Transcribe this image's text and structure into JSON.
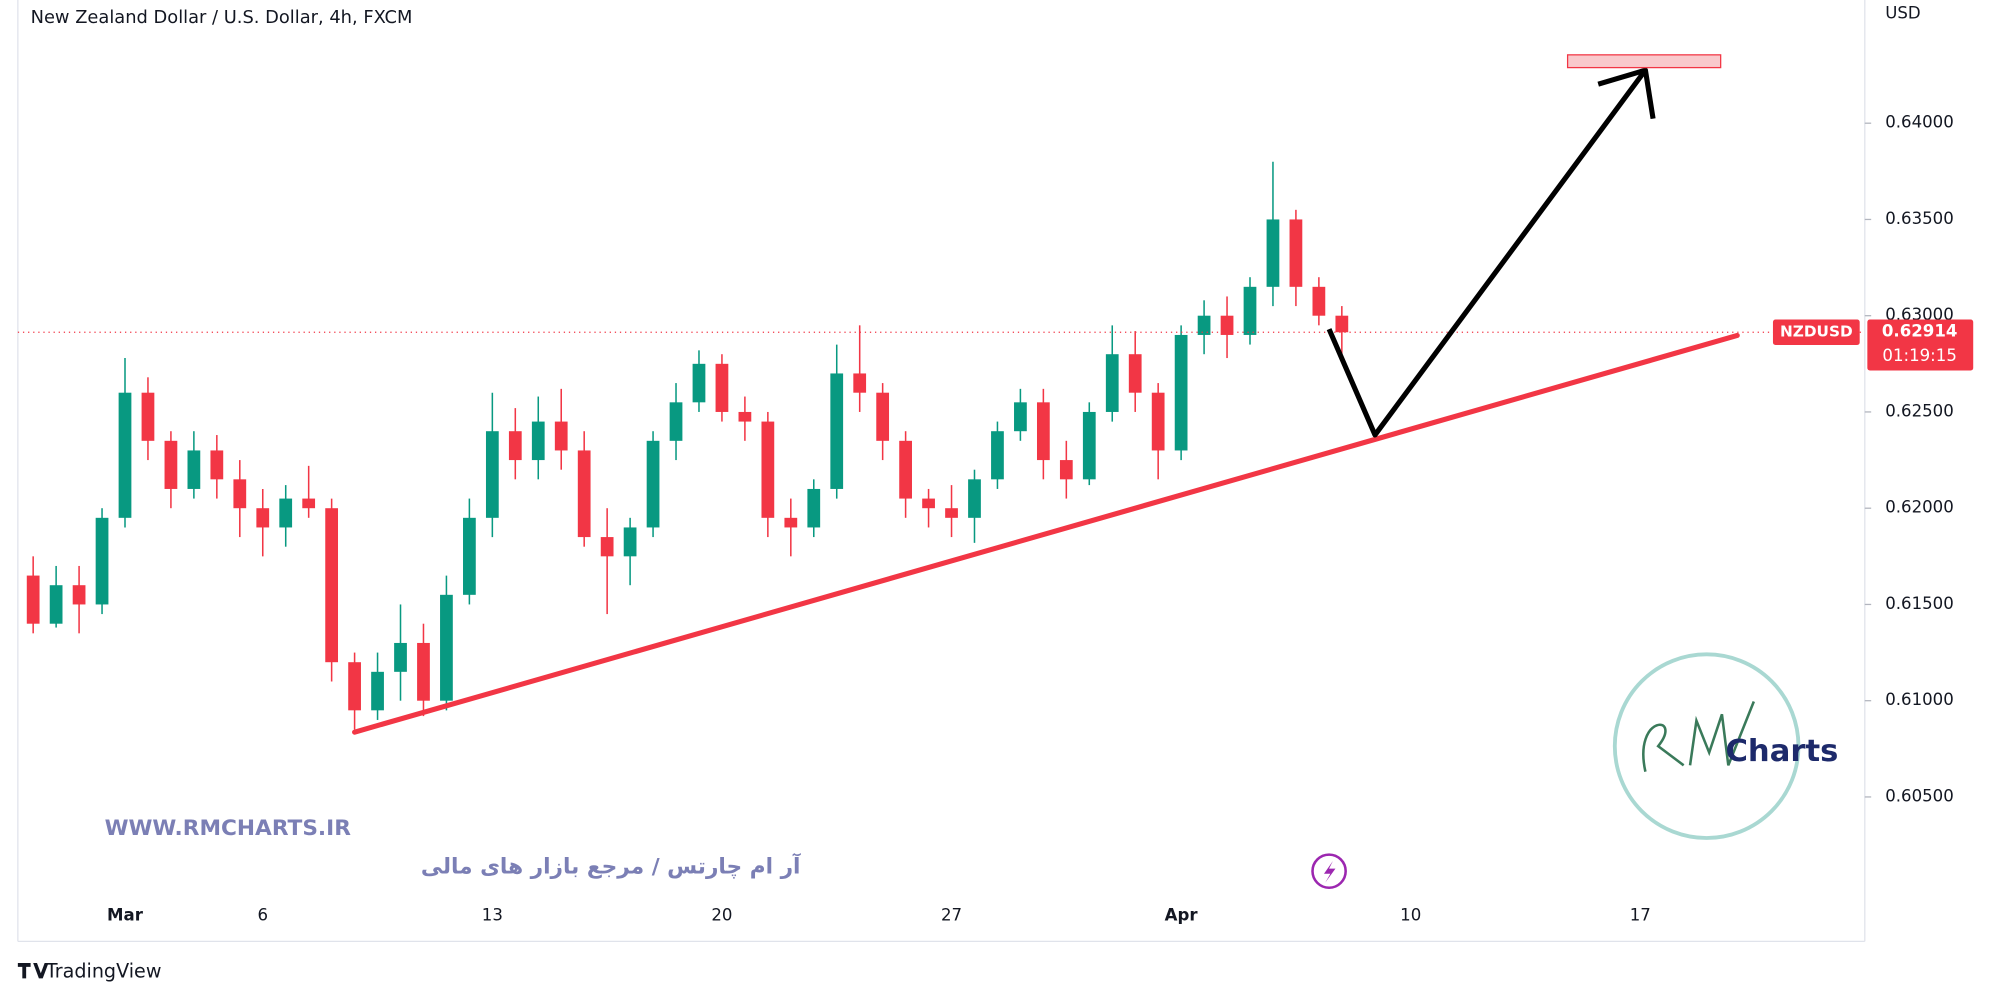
{
  "chart_data": {
    "type": "candlestick",
    "title": "New Zealand Dollar / U.S. Dollar, 4h, FXCM",
    "currency": "USD",
    "symbol": "NZDUSD",
    "last_price": 0.62914,
    "countdown": "01:19:15",
    "up_color": "#089981",
    "down_color": "#f23645",
    "categories": [
      null,
      null,
      null,
      null,
      "Mar",
      null,
      null,
      null,
      null,
      null,
      "6",
      null,
      null,
      null,
      null,
      null,
      null,
      null,
      null,
      null,
      "13",
      null,
      null,
      null,
      null,
      null,
      null,
      null,
      null,
      null,
      "20",
      null,
      null,
      null,
      null,
      null,
      null,
      null,
      null,
      null,
      "27",
      null,
      null,
      null,
      null,
      null,
      null,
      null,
      null,
      null,
      "Apr",
      null,
      null,
      null,
      null,
      null,
      null,
      null,
      null,
      null,
      "10",
      null,
      null,
      null,
      null,
      null,
      null,
      null,
      null,
      null,
      "17",
      null,
      null,
      null,
      null,
      null,
      null,
      null,
      null,
      null
    ],
    "open": [
      0.6165,
      0.614,
      0.616,
      0.615,
      0.6195,
      0.626,
      0.6235,
      0.621,
      0.623,
      0.6215,
      0.62,
      0.619,
      0.6205,
      0.62,
      0.612,
      0.6095,
      0.6115,
      0.613,
      0.61,
      0.6155,
      0.6195,
      0.624,
      0.6225,
      0.6245,
      0.623,
      0.6185,
      0.6175,
      0.619,
      0.6235,
      0.6255,
      0.6275,
      0.625,
      0.6245,
      0.6195,
      0.619,
      0.621,
      0.627,
      0.626,
      0.6235,
      0.6205,
      0.62,
      0.6195,
      0.6215,
      0.624,
      0.6255,
      0.6225,
      0.6215,
      0.625,
      0.628,
      0.626,
      0.623,
      0.629,
      0.63,
      0.629,
      0.6315,
      0.635,
      0.6315,
      0.63,
      null,
      null,
      null,
      null,
      null,
      null,
      null,
      null,
      null,
      null,
      null,
      null,
      null,
      null,
      null,
      null,
      null,
      null,
      null,
      null,
      null,
      null
    ],
    "high": [
      0.6175,
      0.617,
      0.617,
      0.62,
      0.6278,
      0.6268,
      0.624,
      0.624,
      0.6238,
      0.6225,
      0.621,
      0.6212,
      0.6222,
      0.6205,
      0.6125,
      0.6125,
      0.615,
      0.614,
      0.6165,
      0.6205,
      0.626,
      0.6252,
      0.6258,
      0.6262,
      0.624,
      0.62,
      0.6195,
      0.624,
      0.6265,
      0.6282,
      0.628,
      0.6258,
      0.625,
      0.6205,
      0.6215,
      0.6285,
      0.6295,
      0.6265,
      0.624,
      0.621,
      0.6212,
      0.622,
      0.6245,
      0.6262,
      0.6262,
      0.6235,
      0.6255,
      0.6295,
      0.6292,
      0.6265,
      0.6295,
      0.6308,
      0.631,
      0.632,
      0.638,
      0.6355,
      0.632,
      0.6305,
      null,
      null,
      null,
      null,
      null,
      null,
      null,
      null,
      null,
      null,
      null,
      null,
      null,
      null,
      null,
      null,
      null,
      null,
      null,
      null,
      null,
      null
    ],
    "low": [
      0.6135,
      0.6138,
      0.6135,
      0.6145,
      0.619,
      0.6225,
      0.62,
      0.6205,
      0.6205,
      0.6185,
      0.6175,
      0.618,
      0.6195,
      0.611,
      0.6085,
      0.609,
      0.61,
      0.6092,
      0.6095,
      0.615,
      0.6185,
      0.6215,
      0.6215,
      0.622,
      0.618,
      0.6145,
      0.616,
      0.6185,
      0.6225,
      0.625,
      0.6245,
      0.6235,
      0.6185,
      0.6175,
      0.6185,
      0.6205,
      0.625,
      0.6225,
      0.6195,
      0.619,
      0.6185,
      0.6182,
      0.621,
      0.6235,
      0.6215,
      0.6205,
      0.6212,
      0.6245,
      0.625,
      0.6215,
      0.6225,
      0.628,
      0.6278,
      0.6285,
      0.6305,
      0.6305,
      0.6295,
      0.628,
      null,
      null,
      null,
      null,
      null,
      null,
      null,
      null,
      null,
      null,
      null,
      null,
      null,
      null,
      null,
      null,
      null,
      null,
      null,
      null,
      null,
      null
    ],
    "close": [
      0.614,
      0.616,
      0.615,
      0.6195,
      0.626,
      0.6235,
      0.621,
      0.623,
      0.6215,
      0.62,
      0.619,
      0.6205,
      0.62,
      0.612,
      0.6095,
      0.6115,
      0.613,
      0.61,
      0.6155,
      0.6195,
      0.624,
      0.6225,
      0.6245,
      0.623,
      0.6185,
      0.6175,
      0.619,
      0.6235,
      0.6255,
      0.6275,
      0.625,
      0.6245,
      0.6195,
      0.619,
      0.621,
      0.627,
      0.626,
      0.6235,
      0.6205,
      0.62,
      0.6195,
      0.6215,
      0.624,
      0.6255,
      0.6225,
      0.6215,
      0.625,
      0.628,
      0.626,
      0.623,
      0.629,
      0.63,
      0.629,
      0.6315,
      0.635,
      0.6315,
      0.63,
      0.62914,
      null,
      null,
      null,
      null,
      null,
      null,
      null,
      null,
      null,
      null,
      null,
      null,
      null,
      null,
      null,
      null,
      null,
      null,
      null,
      null,
      null,
      null
    ],
    "ylim": [
      0.5975,
      0.6464
    ],
    "yticks": [
      {
        "value": 0.605,
        "label": "0.60500"
      },
      {
        "value": 0.61,
        "label": "0.61000"
      },
      {
        "value": 0.615,
        "label": "0.61500"
      },
      {
        "value": 0.62,
        "label": "0.62000"
      },
      {
        "value": 0.625,
        "label": "0.62500"
      },
      {
        "value": 0.63,
        "label": "0.63000"
      },
      {
        "value": 0.635,
        "label": "0.63500"
      },
      {
        "value": 0.64,
        "label": "0.64000"
      }
    ]
  },
  "watermark": {
    "url": "WWW.RMCHARTS.IR",
    "tagline": "آر ام چارتس / مرجع بازار های مالی",
    "logo": "Charts"
  },
  "branding": "TradingView"
}
